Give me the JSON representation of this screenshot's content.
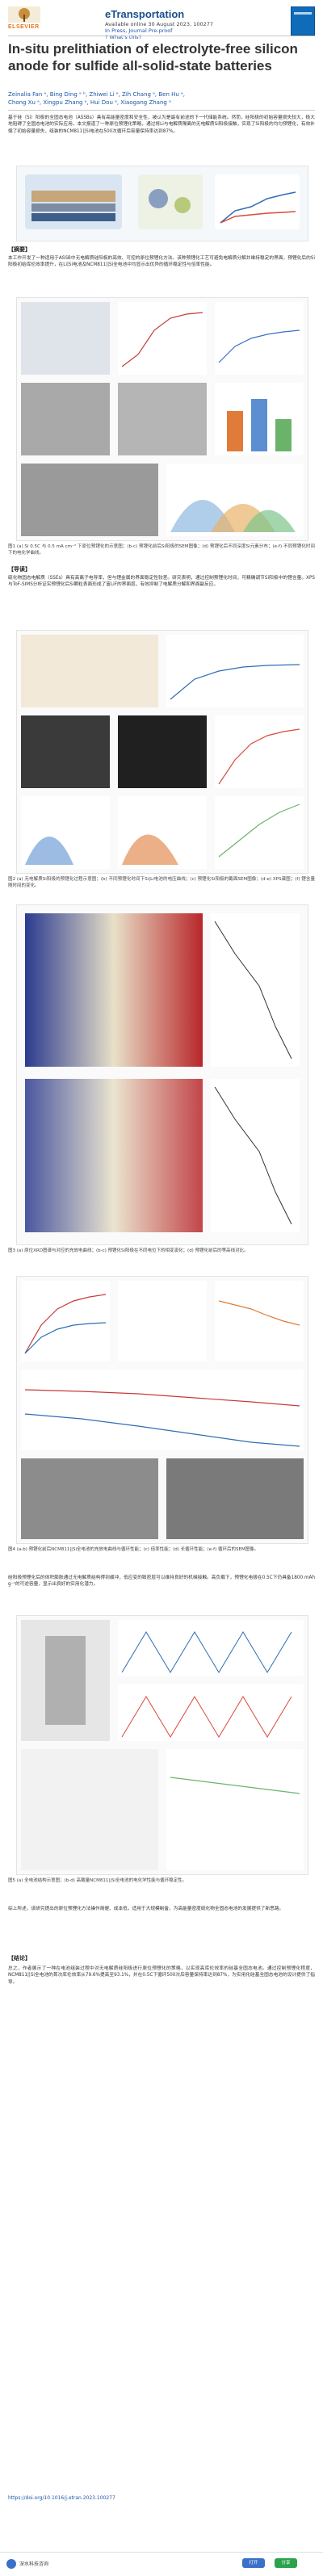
{
  "header": {
    "publisher": "ELSEVIER",
    "journal": "eTransportation",
    "available_online": "Available online 30 August 2023, 100277",
    "in_press": "In Press, Journal Pre-proof",
    "links": "? What's this?"
  },
  "article": {
    "title": "In-situ prelithiation of electrolyte-free silicon anode for sulfide all-solid-state batteries",
    "authors_line1": "Zeinalia Fan ᵃ, Bing Ding ᵃ ᵇ, Zhiwei Li ᵃ, Zih Chang ᵃ, Ben Hu ᵃ,",
    "authors_line2": "Chong Xu ᵃ, Xingpu Zhang ᵃ, Hui Dou ᵃ, Xiaogang Zhang ᵃ"
  },
  "sections": {
    "abstract_heading": "【摘要】",
    "results_heading": "【导读】",
    "conclusion_heading": "【结论】"
  },
  "paragraphs": {
    "intro": "基于硅（Si）阳极的全固态电池（ASSBs）具有高能量密度和安全性，被认为是最有前途的下一代储能系统。然而，硅阳极的初始容量损失较大，极大地阻碍了全固态电池的实际应用。本文报道了一种原位预锂化策略，通过将Li与电解质隔离的无电解质Si阳极接触，实现了Si阳极的均匀预锂化，有效补偿了初始容量损失，组装的NCM811||Si电池在500次循环后容量保持率达到87%。",
    "para1": "本工作开发了一种适用于ASSB中无电解质硅阳极的高效、可控的原位预锂化方法。该种预锂化工艺可避免电解质分解并维持稳定的界面，预锂化后的Si阳极初始库伦效率提升，在Li|Si电池及NCM811||Si全电池中均显示出优异的循环稳定性与倍率性能。",
    "para2": "硫化物固态电解质（SSEs）具有高离子电导率，但与锂金属的界面稳定性较差。研究表明，通过控制预锂化时间，可精确调节Si阳极中的锂含量。XPS与ToF-SIMS分析证实预锂化后Si颗粒表面形成了富LiF的界面层，有效抑制了电解质分解和界面副反应。",
    "para3": "硅阳极预锂化后的体积膨胀通过无电解质结构得到缓冲，低应变的致密层可以维持良好的机械接触。高负载下，预锂化电极在0.5C下仍具备1800 mAh g⁻¹的可逆容量，显示出良好的实用化潜力。",
    "para4": "综上所述，该研究提出的原位预锂化方法操作简便、成本低，适用于大规模制备，为高能量密度硫化物全固态电池的发展提供了新思路。",
    "conclusion": "总之，作者展示了一种在电池组装过程中对无电解质硅阳极进行原位预锂化的策略，以实现高库伦效率的硅基全固态电池。通过控制预锂化程度，NCM811||Si全电池的首次库伦效率从79.6%提高至93.1%，并在0.5C下循环500次后容量保持率达到87%，为实用化硅基全固态电池的设计提供了指导。"
  },
  "figures": {
    "fig1_caption": "图1 (a) Si 0.5C 与 0.5 mA cm⁻² 下原位预锂化的示意图；(b-c) 预锂化前后Si阳极的SEM图像；(d) 预锂化后不同深度Si元素分布；(e-f) 不同预锂化时间下的电化学曲线。",
    "fig2_caption": "图2 (a) 无电解质Si阳极的预锂化过程示意图；(b) 不同预锂化时间下Si|Li电池的电压曲线；(c) 预锂化Si阳极的截面SEM图像；(d-e) XPS谱图；(f) 锂含量随时间的变化。",
    "fig3_caption": "图3 (a) 原位XRD图谱与对应的充放电曲线；(b-c) 预锂化Si阳极在不同电位下的相变演化；(d) 预锂化前后的等高线对比。",
    "fig4_caption": "图4 (a-b) 预锂化前后NCM811||Si全电池的充放电曲线与循环性能；(c) 倍率性能；(d) 长循环性能；(e-f) 循环后的SEM图像。",
    "fig5_caption": "图5 (a) 全电池结构示意图；(b-d) 高载量NCM811||Si全电池的电化学性能与循环稳定性。"
  },
  "footer": {
    "doi": "https://doi.org/10.1016/j.etran.2023.100277",
    "app_name": "深水科技咨询",
    "btn_left": "打开",
    "btn_right": "分享"
  }
}
